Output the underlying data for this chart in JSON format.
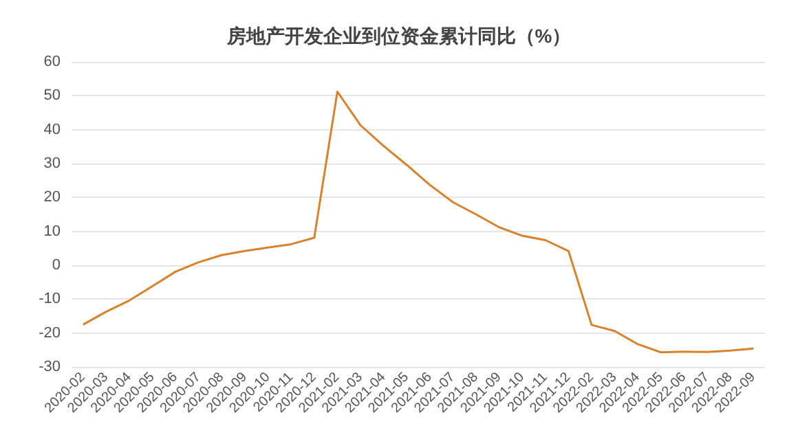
{
  "chart_data": {
    "type": "line",
    "title": "房地产开发企业到位资金累计同比（%）",
    "categories": [
      "2020-02",
      "2020-03",
      "2020-04",
      "2020-05",
      "2020-06",
      "2020-07",
      "2020-08",
      "2020-09",
      "2020-10",
      "2020-11",
      "2020-12",
      "2021-02",
      "2021-03",
      "2021-04",
      "2021-05",
      "2021-06",
      "2021-07",
      "2021-08",
      "2021-09",
      "2021-10",
      "2021-11",
      "2021-12",
      "2022-02",
      "2022-03",
      "2022-04",
      "2022-05",
      "2022-06",
      "2022-07",
      "2022-08",
      "2022-09"
    ],
    "series": [
      {
        "color": "#d9822b",
        "values": [
          -17.5,
          -13.7,
          -10.4,
          -6.2,
          -1.9,
          0.9,
          3.0,
          4.2,
          5.2,
          6.2,
          8.1,
          51.2,
          41.3,
          35.2,
          29.6,
          23.7,
          18.6,
          15.0,
          11.2,
          8.7,
          7.4,
          4.2,
          -17.6,
          -19.4,
          -23.3,
          -25.7,
          -25.5,
          -25.6,
          -25.2,
          -24.6
        ]
      }
    ],
    "ylim": [
      -30,
      60
    ],
    "yticks": [
      -30,
      -20,
      -10,
      0,
      10,
      20,
      30,
      40,
      50,
      60
    ],
    "grid": "y",
    "marker": "none",
    "line_style": "solid"
  }
}
